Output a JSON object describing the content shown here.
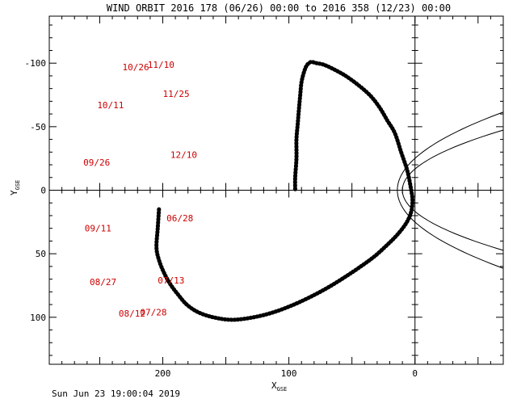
{
  "chart_data": {
    "type": "line",
    "title": "WIND ORBIT 2016 178 (06/26) 00:00 to 2016 358 (12/23) 00:00",
    "xlabel_main": "X",
    "xlabel_sub": "GSE",
    "ylabel_main": "Y",
    "ylabel_sub": "GSE",
    "x_range": [
      290,
      -70
    ],
    "y_range": [
      -137,
      137
    ],
    "y_axis_reversed": true,
    "x_ticks": [
      200,
      100,
      0
    ],
    "x_tick_labels": [
      "200",
      "100",
      "0"
    ],
    "y_ticks": [
      -100,
      -50,
      0,
      50,
      100
    ],
    "y_tick_labels": [
      "-100",
      "-50",
      "0",
      "50",
      "100"
    ],
    "orbit": {
      "x": [
        203,
        204,
        205,
        203,
        199,
        194,
        188,
        181,
        172,
        160,
        145,
        128,
        112,
        96,
        81,
        68,
        55,
        43,
        32,
        22,
        14,
        7,
        3,
        2,
        3,
        6,
        11,
        16,
        22,
        28,
        35,
        44,
        55,
        66,
        73,
        78,
        82,
        84,
        86,
        88,
        90,
        91,
        92,
        93,
        94,
        94,
        95,
        95
      ],
      "y": [
        15,
        30,
        45,
        55,
        65,
        74,
        82,
        90,
        96,
        100,
        102,
        100,
        96,
        90,
        83,
        76,
        68,
        60,
        52,
        43,
        35,
        26,
        17,
        8,
        0,
        -15,
        -30,
        -45,
        -55,
        -65,
        -74,
        -82,
        -90,
        -96,
        -99,
        -100,
        -101,
        -100,
        -98,
        -93,
        -85,
        -75,
        -64,
        -52,
        -40,
        -25,
        -10,
        0
      ]
    },
    "date_labels": [
      {
        "text": "06/28",
        "x": 197,
        "y": 22
      },
      {
        "text": "07/13",
        "x": 204,
        "y": 71
      },
      {
        "text": "07/28",
        "x": 218,
        "y": 96
      },
      {
        "text": "08/12",
        "x": 235,
        "y": 97
      },
      {
        "text": "08/27",
        "x": 258,
        "y": 72
      },
      {
        "text": "09/11",
        "x": 262,
        "y": 30
      },
      {
        "text": "09/26",
        "x": 263,
        "y": -22
      },
      {
        "text": "10/11",
        "x": 252,
        "y": -67
      },
      {
        "text": "10/26",
        "x": 232,
        "y": -97
      },
      {
        "text": "11/10",
        "x": 212,
        "y": -99
      },
      {
        "text": "11/25",
        "x": 200,
        "y": -76
      },
      {
        "text": "12/10",
        "x": 194,
        "y": -28
      }
    ],
    "timestamp": "Sun Jun 23 19:00:04 2019"
  }
}
